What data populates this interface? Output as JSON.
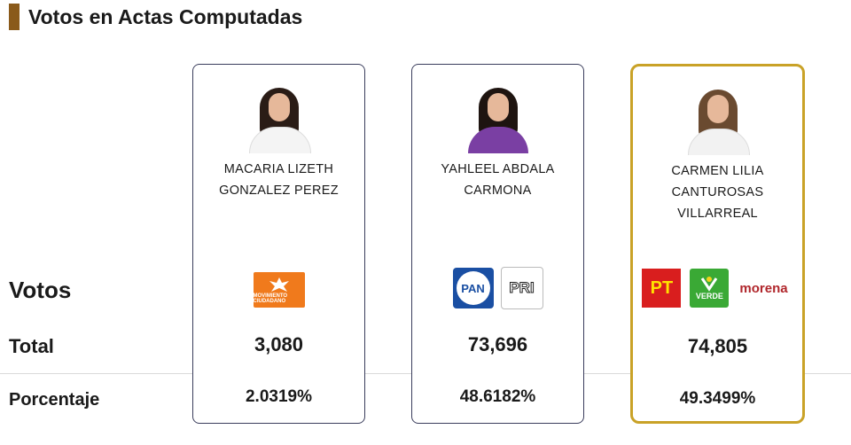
{
  "header": {
    "title": "Votos en Actas Computadas"
  },
  "labels": {
    "votos": "Votos",
    "total": "Total",
    "porcentaje": "Porcentaje"
  },
  "candidates": [
    {
      "name_line1": "MACARIA LIZETH",
      "name_line2": "GONZALEZ PEREZ",
      "name_line3": "",
      "parties": [
        {
          "label": "MOVIMIENTO CIUDADANO"
        }
      ],
      "total": "3,080",
      "percentage": "2.0319%"
    },
    {
      "name_line1": "YAHLEEL ABDALA",
      "name_line2": "CARMONA",
      "name_line3": "",
      "parties": [
        {
          "label": "PAN"
        },
        {
          "label": "PRI"
        }
      ],
      "total": "73,696",
      "percentage": "48.6182%"
    },
    {
      "name_line1": "CARMEN LILIA",
      "name_line2": "CANTUROSAS",
      "name_line3": "VILLARREAL",
      "parties": [
        {
          "label": "PT"
        },
        {
          "label": "VERDE"
        },
        {
          "label": "morena"
        }
      ],
      "total": "74,805",
      "percentage": "49.3499%"
    }
  ],
  "colors": {
    "title_accent": "#8a5a1a",
    "card_border": "#3a3d5c",
    "winner_border": "#c9a227",
    "mc_orange": "#f07a1c",
    "pan_blue": "#1a4fa3",
    "pri_green": "#1e8c3c",
    "pri_red": "#d32f2f",
    "pt_red": "#d91e1e",
    "pt_yellow": "#ffe300",
    "verde_green": "#3aa935",
    "morena_red": "#b0262b"
  },
  "winner_index": 2
}
